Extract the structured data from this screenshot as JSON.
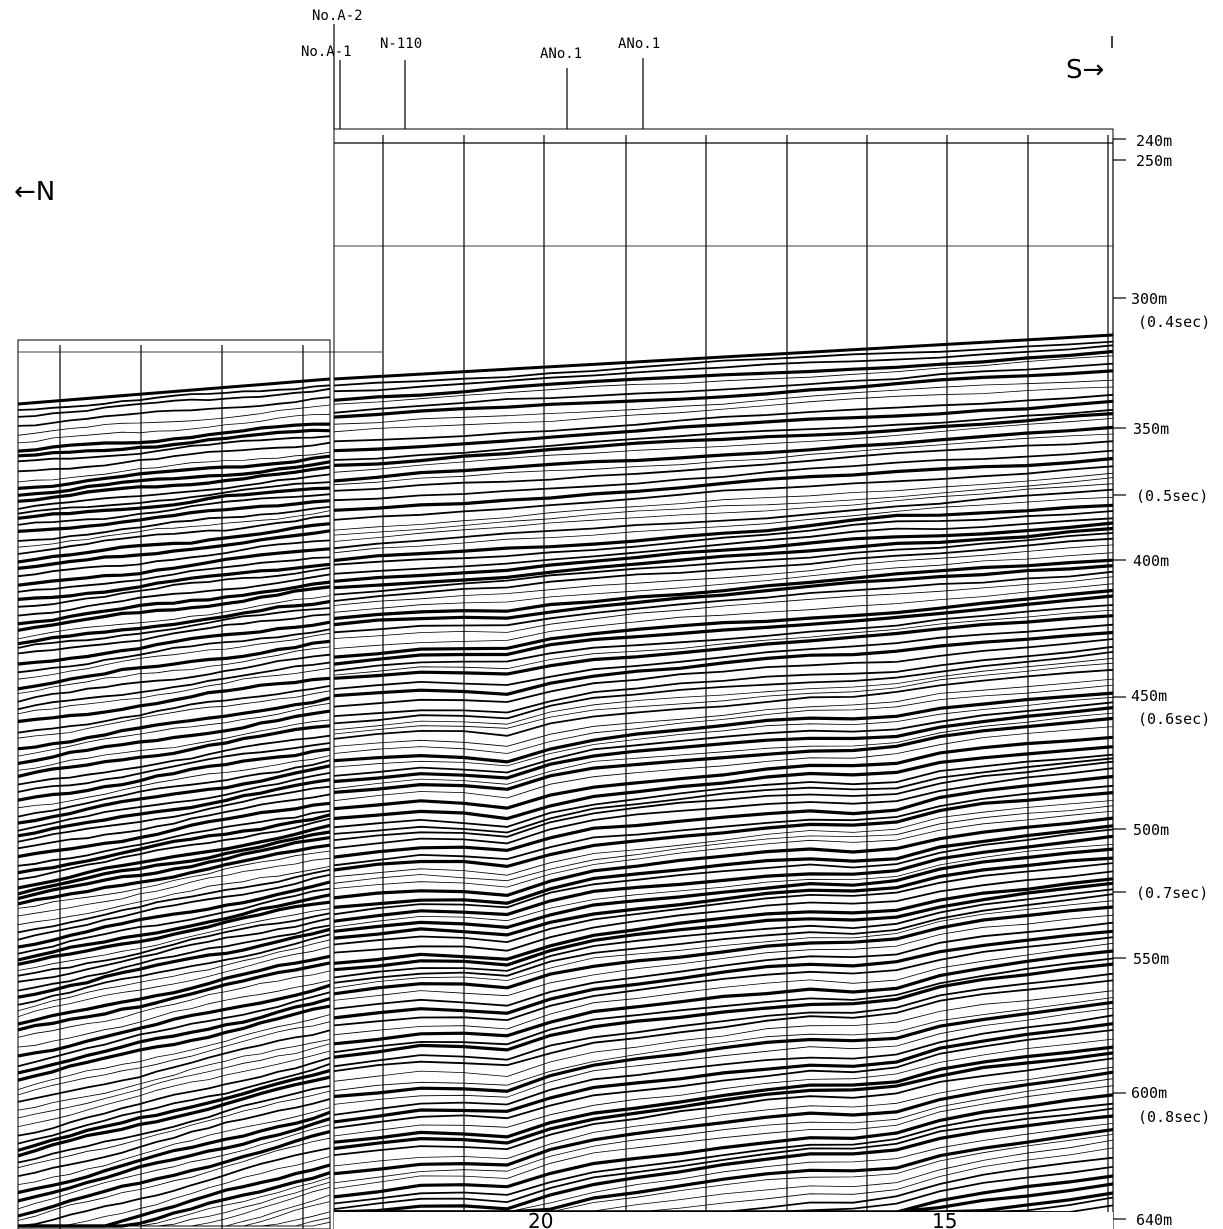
{
  "directions": {
    "north": "←N",
    "south": "S→"
  },
  "wells": [
    {
      "label": "No.A-2"
    },
    {
      "label": "No.A-1"
    },
    {
      "label": "N-110"
    },
    {
      "label": "ANo.1"
    },
    {
      "label": "ANo.1"
    }
  ],
  "depth_scale": [
    {
      "depth": "240m",
      "time": ""
    },
    {
      "depth": "250m",
      "time": ""
    },
    {
      "depth": "300m",
      "time": "(0.4sec)"
    },
    {
      "depth": "350m",
      "time": ""
    },
    {
      "depth": "",
      "time": "(0.5sec)"
    },
    {
      "depth": "400m",
      "time": ""
    },
    {
      "depth": "450m",
      "time": "(0.6sec)"
    },
    {
      "depth": "500m",
      "time": ""
    },
    {
      "depth": "",
      "time": "(0.7sec)"
    },
    {
      "depth": "550m",
      "time": ""
    },
    {
      "depth": "600m",
      "time": "(0.8sec)"
    },
    {
      "depth": "640m",
      "time": ""
    }
  ],
  "shot_points": [
    "20",
    "15"
  ],
  "colors": {
    "ink": "#000000",
    "paper": "#ffffff"
  }
}
